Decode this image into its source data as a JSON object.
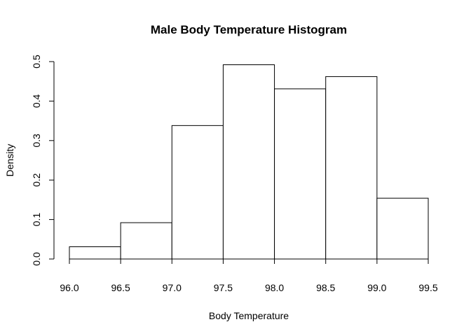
{
  "chart_data": {
    "type": "bar",
    "title": "Male Body Temperature Histogram",
    "xlabel": "Body Temperature",
    "ylabel": "Density",
    "bins": [
      {
        "start": 96.0,
        "end": 96.5,
        "density": 0.031
      },
      {
        "start": 96.5,
        "end": 97.0,
        "density": 0.092
      },
      {
        "start": 97.0,
        "end": 97.5,
        "density": 0.338
      },
      {
        "start": 97.5,
        "end": 98.0,
        "density": 0.492
      },
      {
        "start": 98.0,
        "end": 98.5,
        "density": 0.431
      },
      {
        "start": 98.5,
        "end": 99.0,
        "density": 0.462
      },
      {
        "start": 99.0,
        "end": 99.5,
        "density": 0.154
      }
    ],
    "x_ticks": [
      "96.0",
      "96.5",
      "97.0",
      "97.5",
      "98.0",
      "98.5",
      "99.0",
      "99.5"
    ],
    "y_ticks": [
      "0.0",
      "0.1",
      "0.2",
      "0.3",
      "0.4",
      "0.5"
    ],
    "xlim": [
      96.0,
      99.5
    ],
    "ylim": [
      0,
      0.5
    ],
    "grid": false,
    "legend": "none"
  }
}
